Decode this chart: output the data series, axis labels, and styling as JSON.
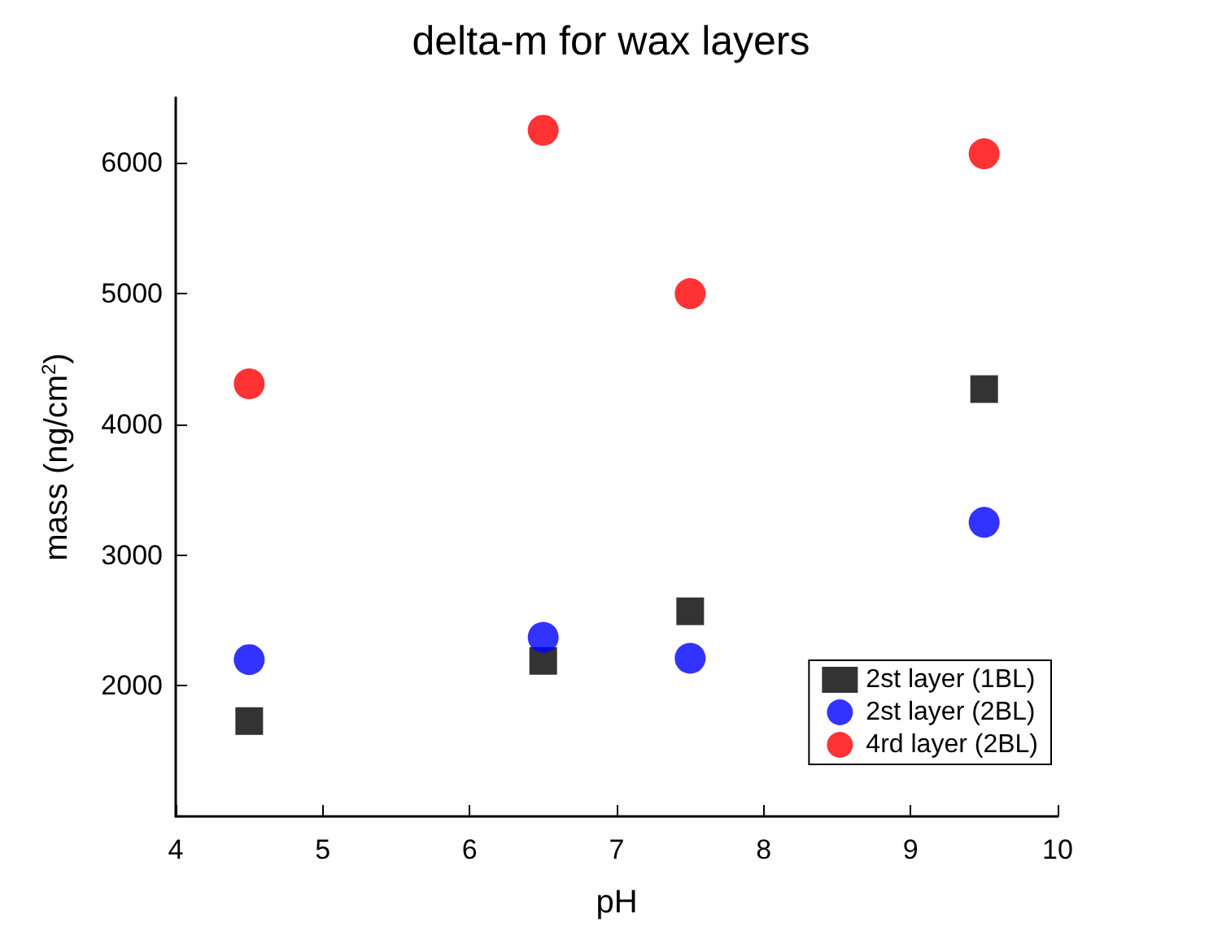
{
  "chart_data": {
    "type": "scatter",
    "title": "delta-m for wax layers",
    "xlabel": "pH",
    "ylabel": "mass (ng/cm$^{2}$)",
    "x": [
      4.5,
      6.5,
      7.5,
      9.5
    ],
    "series": [
      {
        "name": "2st layer (1BL)",
        "color": "#000000",
        "marker": "square",
        "values": [
          1730,
          2190,
          2570,
          4270
        ]
      },
      {
        "name": "2st layer (2BL)",
        "color": "#0000ff",
        "marker": "circle",
        "values": [
          2200,
          2370,
          2210,
          3250
        ]
      },
      {
        "name": "4rd layer (2BL)",
        "color": "#ff0000",
        "marker": "circle",
        "values": [
          4310,
          6250,
          5000,
          6070
        ]
      }
    ],
    "xlim": [
      4,
      10
    ],
    "xticks": [
      4,
      5,
      6,
      7,
      8,
      9,
      10
    ],
    "ylim": [
      1000,
      6500
    ],
    "yticks": [
      2000,
      3000,
      4000,
      5000,
      6000
    ],
    "grid": false,
    "legend": "bottom right"
  }
}
